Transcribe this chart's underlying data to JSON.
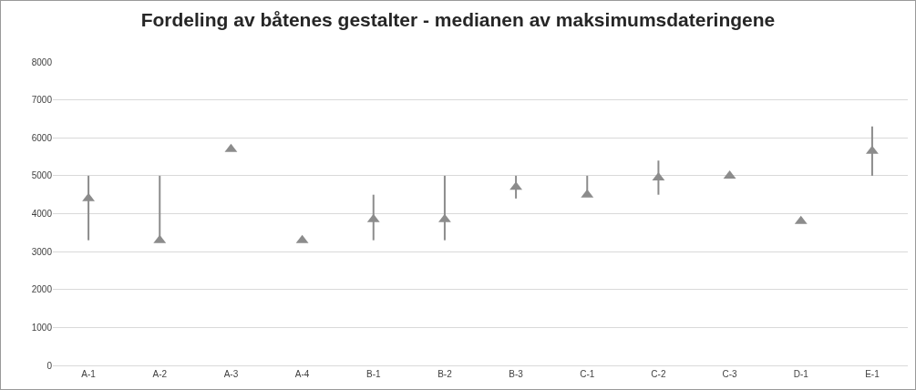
{
  "chart_data": {
    "type": "scatter",
    "title": "Fordeling av båtenes gestalter - medianen av maksimumsdateringene",
    "categories": [
      "A-1",
      "A-2",
      "A-3",
      "A-4",
      "B-1",
      "B-2",
      "B-3",
      "C-1",
      "C-2",
      "C-3",
      "D-1",
      "E-1"
    ],
    "values": [
      4400,
      3300,
      5700,
      3300,
      3850,
      3850,
      4700,
      4500,
      4950,
      5000,
      3800,
      5650
    ],
    "errors": [
      [
        3300,
        5000
      ],
      [
        3300,
        5000
      ],
      null,
      null,
      [
        3300,
        4500
      ],
      [
        3300,
        5000
      ],
      [
        4400,
        5000
      ],
      [
        4500,
        5000
      ],
      [
        4500,
        5400
      ],
      null,
      null,
      [
        5000,
        6300
      ]
    ],
    "color": "#8c8c8c",
    "marker": "triangle",
    "ylim": [
      0,
      8000
    ],
    "yticks": [
      0,
      1000,
      2000,
      3000,
      4000,
      5000,
      6000,
      7000,
      8000
    ],
    "grid": "y"
  }
}
